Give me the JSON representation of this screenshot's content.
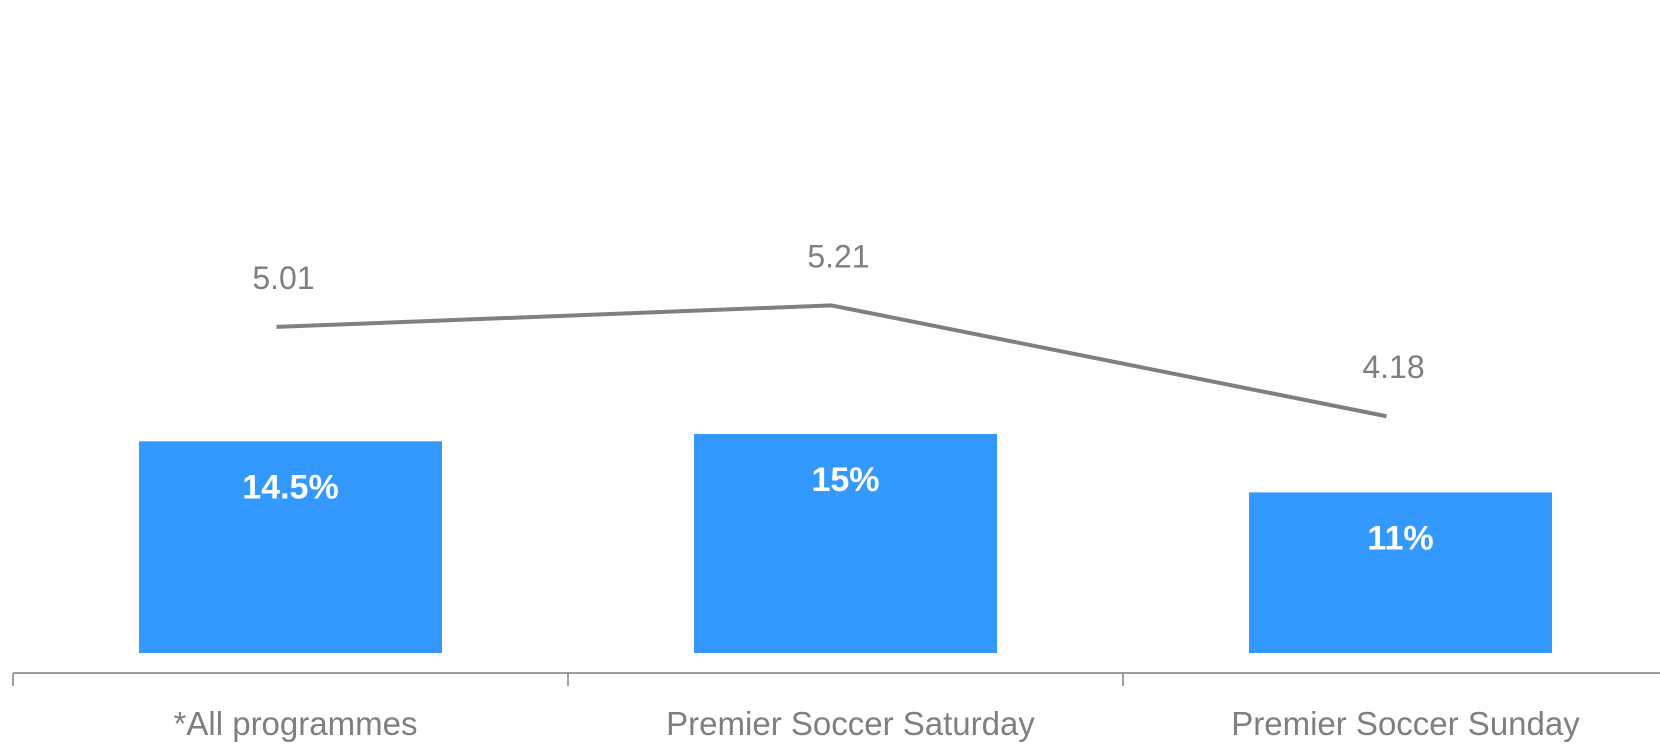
{
  "chart_data": {
    "type": "bar",
    "categories": [
      "*All programmes",
      "Premier Soccer Saturday",
      "Premier Soccer Sunday"
    ],
    "series": [
      {
        "type": "bar",
        "values": [
          14.5,
          15,
          11
        ],
        "labels": [
          "14.5%",
          "15%",
          "11%"
        ],
        "color": "#3399ff"
      },
      {
        "type": "line",
        "values": [
          5.01,
          5.21,
          4.18
        ],
        "labels": [
          "5.01",
          "5.21",
          "4.18"
        ],
        "color": "#7f7f7f"
      }
    ],
    "title": "",
    "xlabel": "",
    "ylabel": "",
    "legend": "none",
    "grid": false,
    "colors": {
      "bar": "#3399ff",
      "line": "#7f7f7f",
      "axis": "#7f7f7f",
      "bar_label": "#ffffff",
      "text": "#7f7f7f"
    }
  }
}
